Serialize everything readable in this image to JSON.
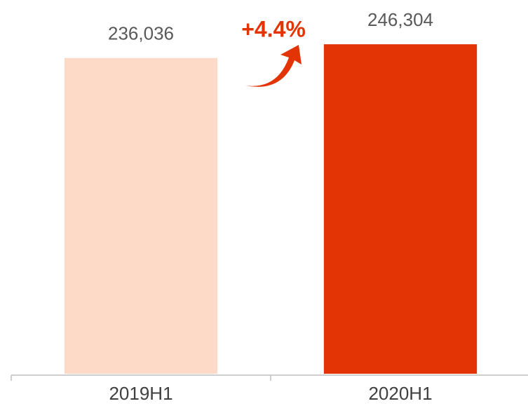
{
  "chart_data": {
    "type": "bar",
    "categories": [
      "2019H1",
      "2020H1"
    ],
    "values": [
      236036,
      246304
    ],
    "value_labels": [
      "236,036",
      "246,304"
    ],
    "colors": [
      "#fdd9c8",
      "#e33405"
    ],
    "annotation": "+4.4%",
    "ylim": [
      0,
      260000
    ]
  }
}
